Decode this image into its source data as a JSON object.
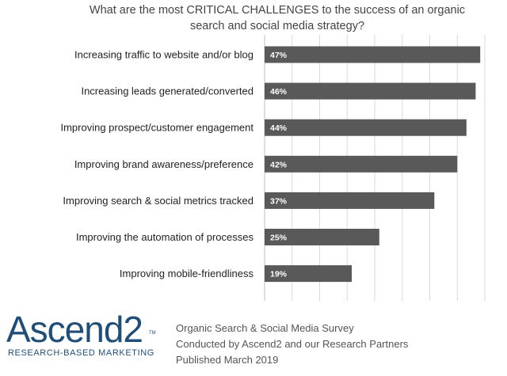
{
  "chart_data": {
    "type": "bar",
    "orientation": "horizontal",
    "title": "What are the most CRITICAL CHALLENGES to the success of an organic search and social media strategy?",
    "categories": [
      "Increasing traffic to website and/or blog",
      "Increasing leads generated/converted",
      "Improving prospect/customer engagement",
      "Improving brand awareness/preference",
      "Improving search & social metrics tracked",
      "Improving the automation of processes",
      "Improving mobile-friendliness"
    ],
    "values": [
      47,
      46,
      44,
      42,
      37,
      25,
      19
    ],
    "value_labels": [
      "47%",
      "46%",
      "44%",
      "42%",
      "37%",
      "25%",
      "19%"
    ],
    "xlim": [
      0,
      48
    ],
    "grid": true,
    "bar_color": "#595959",
    "xlabel": "",
    "ylabel": ""
  },
  "logo": {
    "wordmark": "Ascend2",
    "trademark": "TM",
    "tagline": "RESEARCH-BASED MARKETING",
    "color": "#1f4e79"
  },
  "source": {
    "lines": [
      "Organic Search & Social Media Survey",
      "Conducted by Ascend2 and our Research Partners",
      "Published March 2019"
    ]
  }
}
